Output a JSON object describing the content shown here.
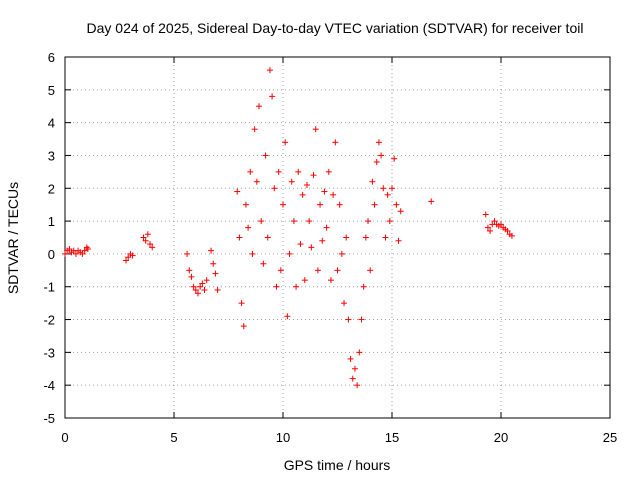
{
  "chart_data": {
    "type": "scatter",
    "title": "Day 024 of 2025, Sidereal Day-to-day VTEC variation (SDTVAR) for receiver toil",
    "xlabel": "GPS time / hours",
    "ylabel": "SDTVAR / TECUs",
    "xlim": [
      0,
      25
    ],
    "ylim": [
      -5,
      6
    ],
    "x_ticks": [
      0,
      5,
      10,
      15,
      20,
      25
    ],
    "y_ticks": [
      -5,
      -4,
      -3,
      -2,
      -1,
      0,
      1,
      2,
      3,
      4,
      5,
      6
    ],
    "grid": true,
    "marker": "plus",
    "color": "#ff0000",
    "series": [
      {
        "name": "SDTVAR",
        "x": [
          0.0,
          0.1,
          0.2,
          0.3,
          0.4,
          0.5,
          0.6,
          0.7,
          0.8,
          0.9,
          1.0,
          1.05,
          2.8,
          2.9,
          3.0,
          3.1,
          3.6,
          3.7,
          3.8,
          3.9,
          4.0,
          5.6,
          5.7,
          5.8,
          5.9,
          6.0,
          6.1,
          6.2,
          6.3,
          6.4,
          6.5,
          6.7,
          6.8,
          6.9,
          7.0,
          7.9,
          8.0,
          8.1,
          8.2,
          8.3,
          8.4,
          8.5,
          8.6,
          8.7,
          8.8,
          8.9,
          9.0,
          9.1,
          9.2,
          9.3,
          9.4,
          9.5,
          9.6,
          9.7,
          9.8,
          9.9,
          10.0,
          10.1,
          10.2,
          10.3,
          10.4,
          10.5,
          10.6,
          10.7,
          10.8,
          10.9,
          11.0,
          11.1,
          11.2,
          11.3,
          11.4,
          11.5,
          11.6,
          11.7,
          11.8,
          11.9,
          12.0,
          12.1,
          12.2,
          12.3,
          12.4,
          12.5,
          12.6,
          12.7,
          12.8,
          12.9,
          13.0,
          13.1,
          13.2,
          13.3,
          13.4,
          13.5,
          13.6,
          13.7,
          13.8,
          13.9,
          14.0,
          14.1,
          14.2,
          14.3,
          14.4,
          14.5,
          14.6,
          14.7,
          14.8,
          14.9,
          15.0,
          15.1,
          15.2,
          15.3,
          15.4,
          16.8,
          19.3,
          19.4,
          19.5,
          19.6,
          19.7,
          19.8,
          19.9,
          20.0,
          20.1,
          20.2,
          20.3,
          20.4,
          20.5
        ],
        "y": [
          0.0,
          0.1,
          0.15,
          0.05,
          0.1,
          0.0,
          0.1,
          0.05,
          0.0,
          0.1,
          0.2,
          0.15,
          -0.2,
          -0.1,
          0.0,
          -0.05,
          0.5,
          0.4,
          0.6,
          0.3,
          0.2,
          0.0,
          -0.5,
          -0.7,
          -1.0,
          -1.1,
          -1.2,
          -1.0,
          -0.9,
          -1.1,
          -0.8,
          0.1,
          -0.3,
          -0.6,
          -1.1,
          1.9,
          0.5,
          -1.5,
          -2.2,
          1.5,
          0.8,
          2.5,
          0.0,
          3.8,
          2.2,
          4.5,
          1.0,
          -0.3,
          3.0,
          0.5,
          5.6,
          4.8,
          2.0,
          -1.0,
          2.5,
          -0.5,
          1.5,
          3.4,
          -1.9,
          0.0,
          2.2,
          1.0,
          -1.0,
          2.5,
          0.3,
          1.8,
          -0.8,
          2.1,
          1.0,
          0.2,
          2.4,
          3.8,
          -0.5,
          1.5,
          0.4,
          1.9,
          0.8,
          2.5,
          -0.8,
          1.8,
          3.4,
          -0.5,
          1.5,
          0.0,
          -1.5,
          0.5,
          -2.0,
          -3.2,
          -3.8,
          -3.5,
          -4.0,
          -3.0,
          -2.0,
          -1.0,
          0.5,
          1.0,
          -0.5,
          2.2,
          1.5,
          2.8,
          3.4,
          3.0,
          2.0,
          0.5,
          1.8,
          1.0,
          2.0,
          2.9,
          1.5,
          0.4,
          1.3,
          1.6,
          1.2,
          0.8,
          0.7,
          0.9,
          1.0,
          0.9,
          0.85,
          0.9,
          0.8,
          0.75,
          0.7,
          0.6,
          0.55
        ]
      }
    ]
  }
}
